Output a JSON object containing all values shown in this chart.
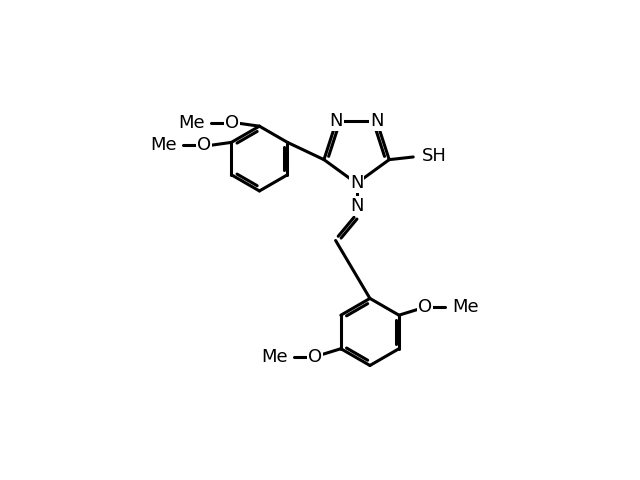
{
  "background_color": "#ffffff",
  "line_color": "#000000",
  "line_width": 2.2,
  "font_size": 13,
  "fig_width": 6.4,
  "fig_height": 4.8,
  "dpi": 100,
  "xlim": [
    -5.0,
    5.5
  ],
  "ylim": [
    -5.5,
    4.2
  ]
}
